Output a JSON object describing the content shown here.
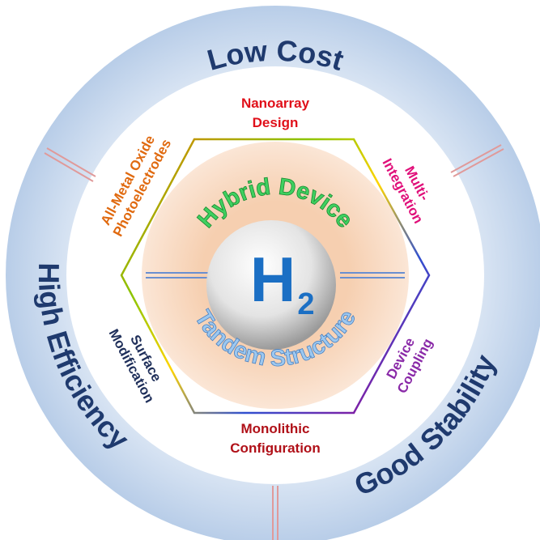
{
  "outer_labels": [
    "Low  Cost",
    "High Efficiency",
    "Good  Stability"
  ],
  "hexagon_labels": [
    {
      "lines": [
        "Nanoarray",
        "Design"
      ]
    },
    {
      "lines": [
        "Multi-",
        "Integration"
      ]
    },
    {
      "lines": [
        "Device",
        "Coupling"
      ]
    },
    {
      "lines": [
        "Monolithic",
        "Configuration"
      ]
    },
    {
      "lines": [
        "Surface",
        "Modification"
      ]
    },
    {
      "lines": [
        "All-Metal Oxide",
        "Photoelectrodes"
      ]
    }
  ],
  "center": {
    "top": "Hybrid Device",
    "bottom": "Tandem Structure",
    "symbol": "H",
    "subscript": "2"
  }
}
